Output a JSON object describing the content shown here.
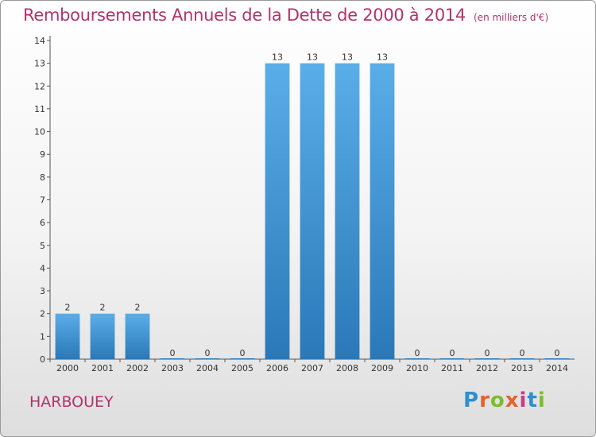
{
  "header": {
    "title": "Remboursements Annuels de la Dette de 2000 à 2014",
    "unit": "(en milliers d'€)"
  },
  "footer": {
    "commune": "HARBOUEY",
    "logo_letters": [
      "P",
      "r",
      "o",
      "x",
      "i",
      "t",
      "i"
    ],
    "logo_colors": [
      "#2e8fd0",
      "#e6622a",
      "#7cbd2a",
      "#e6622a",
      "#c83a8a",
      "#2e8fd0",
      "#7cbd2a"
    ]
  },
  "chart_data": {
    "type": "bar",
    "title": "Remboursements Annuels de la Dette de 2000 à 2014",
    "xlabel": "",
    "ylabel": "",
    "categories": [
      "2000",
      "2001",
      "2002",
      "2003",
      "2004",
      "2005",
      "2006",
      "2007",
      "2008",
      "2009",
      "2010",
      "2011",
      "2012",
      "2013",
      "2014"
    ],
    "values": [
      2,
      2,
      2,
      0,
      0,
      0,
      13,
      13,
      13,
      13,
      0,
      0,
      0,
      0,
      0
    ],
    "ylim": [
      0,
      14
    ],
    "yticks": [
      0,
      1,
      2,
      3,
      4,
      5,
      6,
      7,
      8,
      9,
      10,
      11,
      12,
      13,
      14
    ],
    "grid": false,
    "bar_color_top": "#5aaee8",
    "bar_color_bottom": "#2a78b8"
  }
}
